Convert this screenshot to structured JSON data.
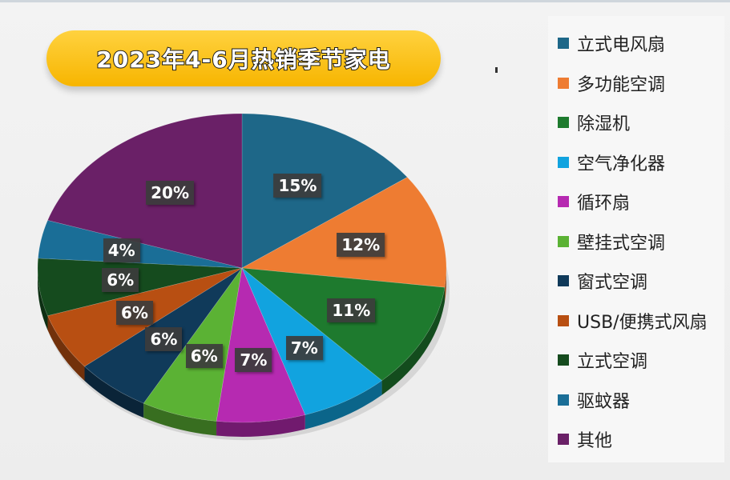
{
  "title": "2023年4-6月热销季节家电",
  "chart_data": {
    "type": "pie",
    "title": "2023年4-6月热销季节家电",
    "legend_position": "right",
    "categories": [
      "立式电风扇",
      "多功能空调",
      "除湿机",
      "空气净化器",
      "循环扇",
      "壁挂式空调",
      "窗式空调",
      "USB/便携式风扇",
      "立式空调",
      "驱蚊器",
      "其他"
    ],
    "values": [
      15,
      12,
      11,
      7,
      7,
      6,
      6,
      6,
      6,
      4,
      20
    ],
    "data_labels": [
      "15%",
      "12%",
      "11%",
      "7%",
      "7%",
      "6%",
      "6%",
      "6%",
      "6%",
      "4%",
      "20%"
    ],
    "colors": [
      "#1e6788",
      "#ee7c32",
      "#1e7a2e",
      "#11a3df",
      "#b62ab1",
      "#5bb234",
      "#103a5a",
      "#b84f12",
      "#154b1e",
      "#1a6e97",
      "#6a2067"
    ]
  }
}
